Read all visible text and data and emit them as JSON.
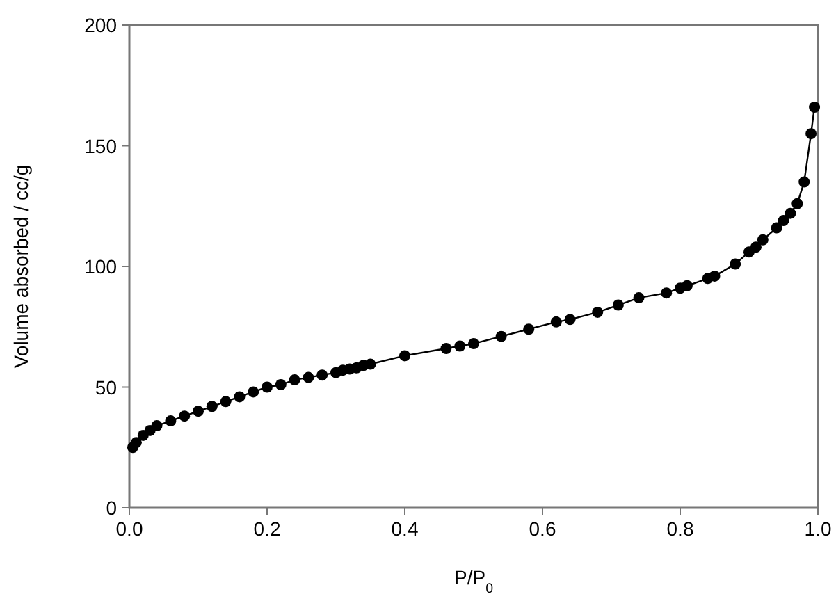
{
  "chart_data": {
    "type": "line",
    "xlabel": "P/P$_{0}$",
    "ylabel": "Volume absorbed / cc/g",
    "xlim": [
      0,
      1
    ],
    "ylim": [
      0,
      200
    ],
    "xticks": [
      {
        "value": 0,
        "label": "0.0"
      },
      0.2,
      0.4,
      0.6,
      0.8,
      {
        "value": 1,
        "label": "1.0"
      }
    ],
    "yticks": [
      0,
      50,
      100,
      150,
      200
    ],
    "grid": false,
    "marker": "circle",
    "line_style": "solid",
    "series": [
      {
        "color": "#000000",
        "x": [
          0.005,
          0.01,
          0.02,
          0.03,
          0.04,
          0.06,
          0.08,
          0.1,
          0.12,
          0.14,
          0.16,
          0.18,
          0.2,
          0.22,
          0.24,
          0.26,
          0.28,
          0.3,
          0.31,
          0.32,
          0.33,
          0.34,
          0.35,
          0.4,
          0.46,
          0.48,
          0.5,
          0.54,
          0.58,
          0.62,
          0.64,
          0.68,
          0.71,
          0.74,
          0.78,
          0.8,
          0.81,
          0.84,
          0.85,
          0.88,
          0.9,
          0.91,
          0.92,
          0.94,
          0.95,
          0.96,
          0.97,
          0.98,
          0.99,
          0.995
        ],
        "values": [
          25,
          27,
          30,
          32,
          34,
          36,
          38,
          40,
          42,
          44,
          46,
          48,
          50,
          51,
          53,
          54,
          55,
          56,
          57,
          57.5,
          58,
          59,
          59.5,
          63,
          66,
          67,
          68,
          71,
          74,
          77,
          78,
          81,
          84,
          87,
          89,
          91,
          92,
          95,
          96,
          101,
          106,
          108,
          111,
          116,
          119,
          122,
          126,
          135,
          155,
          166
        ]
      }
    ]
  }
}
